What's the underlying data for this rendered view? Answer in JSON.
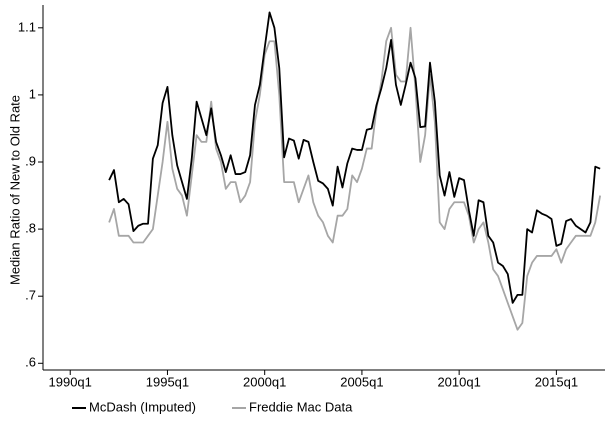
{
  "chart_data": {
    "type": "line",
    "y_label": "Median Ratio of New to Old Rate",
    "xlim": [
      1988.6,
      2017.5
    ],
    "xticks": [
      {
        "value": 1990,
        "label": "1990q1"
      },
      {
        "value": 1995,
        "label": "1995q1"
      },
      {
        "value": 2000,
        "label": "2000q1"
      },
      {
        "value": 2005,
        "label": "2005q1"
      },
      {
        "value": 2010,
        "label": "2010q1"
      },
      {
        "value": 2015,
        "label": "2015q1"
      }
    ],
    "ylim": [
      0.59,
      1.134
    ],
    "yticks": [
      {
        "value": 0.6,
        "label": ".6"
      },
      {
        "value": 0.7,
        "label": ".7"
      },
      {
        "value": 0.8,
        "label": ".8"
      },
      {
        "value": 0.9,
        "label": ".9"
      },
      1,
      1.1
    ],
    "grid": false,
    "legend": "bottom",
    "x": [
      1992,
      1992.25,
      1992.5,
      1992.75,
      1993,
      1993.25,
      1993.5,
      1993.75,
      1994,
      1994.25,
      1994.5,
      1994.75,
      1995,
      1995.25,
      1995.5,
      1995.75,
      1996,
      1996.25,
      1996.5,
      1996.75,
      1997,
      1997.25,
      1997.5,
      1997.75,
      1998,
      1998.25,
      1998.5,
      1998.75,
      1999,
      1999.25,
      1999.5,
      1999.75,
      2000,
      2000.25,
      2000.5,
      2000.75,
      2001,
      2001.25,
      2001.5,
      2001.75,
      2002,
      2002.25,
      2002.5,
      2002.75,
      2003,
      2003.25,
      2003.5,
      2003.75,
      2004,
      2004.25,
      2004.5,
      2004.75,
      2005,
      2005.25,
      2005.5,
      2005.75,
      2006,
      2006.25,
      2006.5,
      2006.75,
      2007,
      2007.25,
      2007.5,
      2007.75,
      2008,
      2008.25,
      2008.5,
      2008.75,
      2009,
      2009.25,
      2009.5,
      2009.75,
      2010,
      2010.25,
      2010.5,
      2010.75,
      2011,
      2011.25,
      2011.5,
      2011.75,
      2012,
      2012.25,
      2012.5,
      2012.75,
      2013,
      2013.25,
      2013.5,
      2013.75,
      2014,
      2014.25,
      2014.5,
      2014.75,
      2015,
      2015.25,
      2015.5,
      2015.75,
      2016,
      2016.25,
      2016.5,
      2016.75,
      2017,
      2017.25
    ],
    "series": [
      {
        "name": "McDash (Imputed)",
        "color": "#000000",
        "values": [
          0.873,
          0.888,
          0.84,
          0.845,
          0.837,
          0.797,
          0.805,
          0.808,
          0.808,
          0.905,
          0.925,
          0.988,
          1.012,
          0.94,
          0.895,
          0.87,
          0.845,
          0.905,
          0.99,
          0.965,
          0.94,
          0.98,
          0.93,
          0.91,
          0.885,
          0.91,
          0.882,
          0.882,
          0.885,
          0.91,
          0.985,
          1.015,
          1.07,
          1.123,
          1.1,
          1.04,
          0.907,
          0.935,
          0.932,
          0.905,
          0.933,
          0.93,
          0.9,
          0.872,
          0.868,
          0.86,
          0.835,
          0.893,
          0.862,
          0.898,
          0.92,
          0.918,
          0.918,
          0.948,
          0.95,
          0.985,
          1.01,
          1.04,
          1.082,
          1.015,
          0.985,
          1.015,
          1.048,
          1.025,
          0.952,
          0.953,
          1.048,
          0.99,
          0.88,
          0.85,
          0.885,
          0.848,
          0.876,
          0.873,
          0.828,
          0.79,
          0.843,
          0.84,
          0.79,
          0.78,
          0.75,
          0.745,
          0.733,
          0.69,
          0.702,
          0.702,
          0.8,
          0.795,
          0.828,
          0.823,
          0.82,
          0.815,
          0.775,
          0.778,
          0.812,
          0.815,
          0.805,
          0.8,
          0.795,
          0.81,
          0.893,
          0.89
        ]
      },
      {
        "name": "Freddie Mac Data",
        "color": "#a6a6a6",
        "values": [
          0.81,
          0.83,
          0.79,
          0.79,
          0.79,
          0.78,
          0.78,
          0.78,
          0.79,
          0.8,
          0.85,
          0.9,
          0.96,
          0.89,
          0.86,
          0.85,
          0.82,
          0.88,
          0.94,
          0.93,
          0.93,
          0.99,
          0.92,
          0.9,
          0.86,
          0.87,
          0.87,
          0.84,
          0.85,
          0.87,
          0.96,
          1.0,
          1.06,
          1.08,
          1.08,
          1.0,
          0.87,
          0.87,
          0.87,
          0.84,
          0.86,
          0.88,
          0.84,
          0.82,
          0.81,
          0.79,
          0.78,
          0.82,
          0.82,
          0.83,
          0.88,
          0.87,
          0.89,
          0.92,
          0.92,
          0.98,
          1.02,
          1.08,
          1.1,
          1.03,
          1.02,
          1.02,
          1.1,
          1.01,
          0.9,
          0.94,
          1.03,
          0.96,
          0.81,
          0.8,
          0.83,
          0.84,
          0.84,
          0.84,
          0.82,
          0.78,
          0.8,
          0.81,
          0.78,
          0.74,
          0.73,
          0.71,
          0.69,
          0.67,
          0.65,
          0.66,
          0.73,
          0.75,
          0.76,
          0.76,
          0.76,
          0.76,
          0.77,
          0.75,
          0.77,
          0.78,
          0.79,
          0.79,
          0.79,
          0.79,
          0.81,
          0.85
        ]
      }
    ]
  }
}
